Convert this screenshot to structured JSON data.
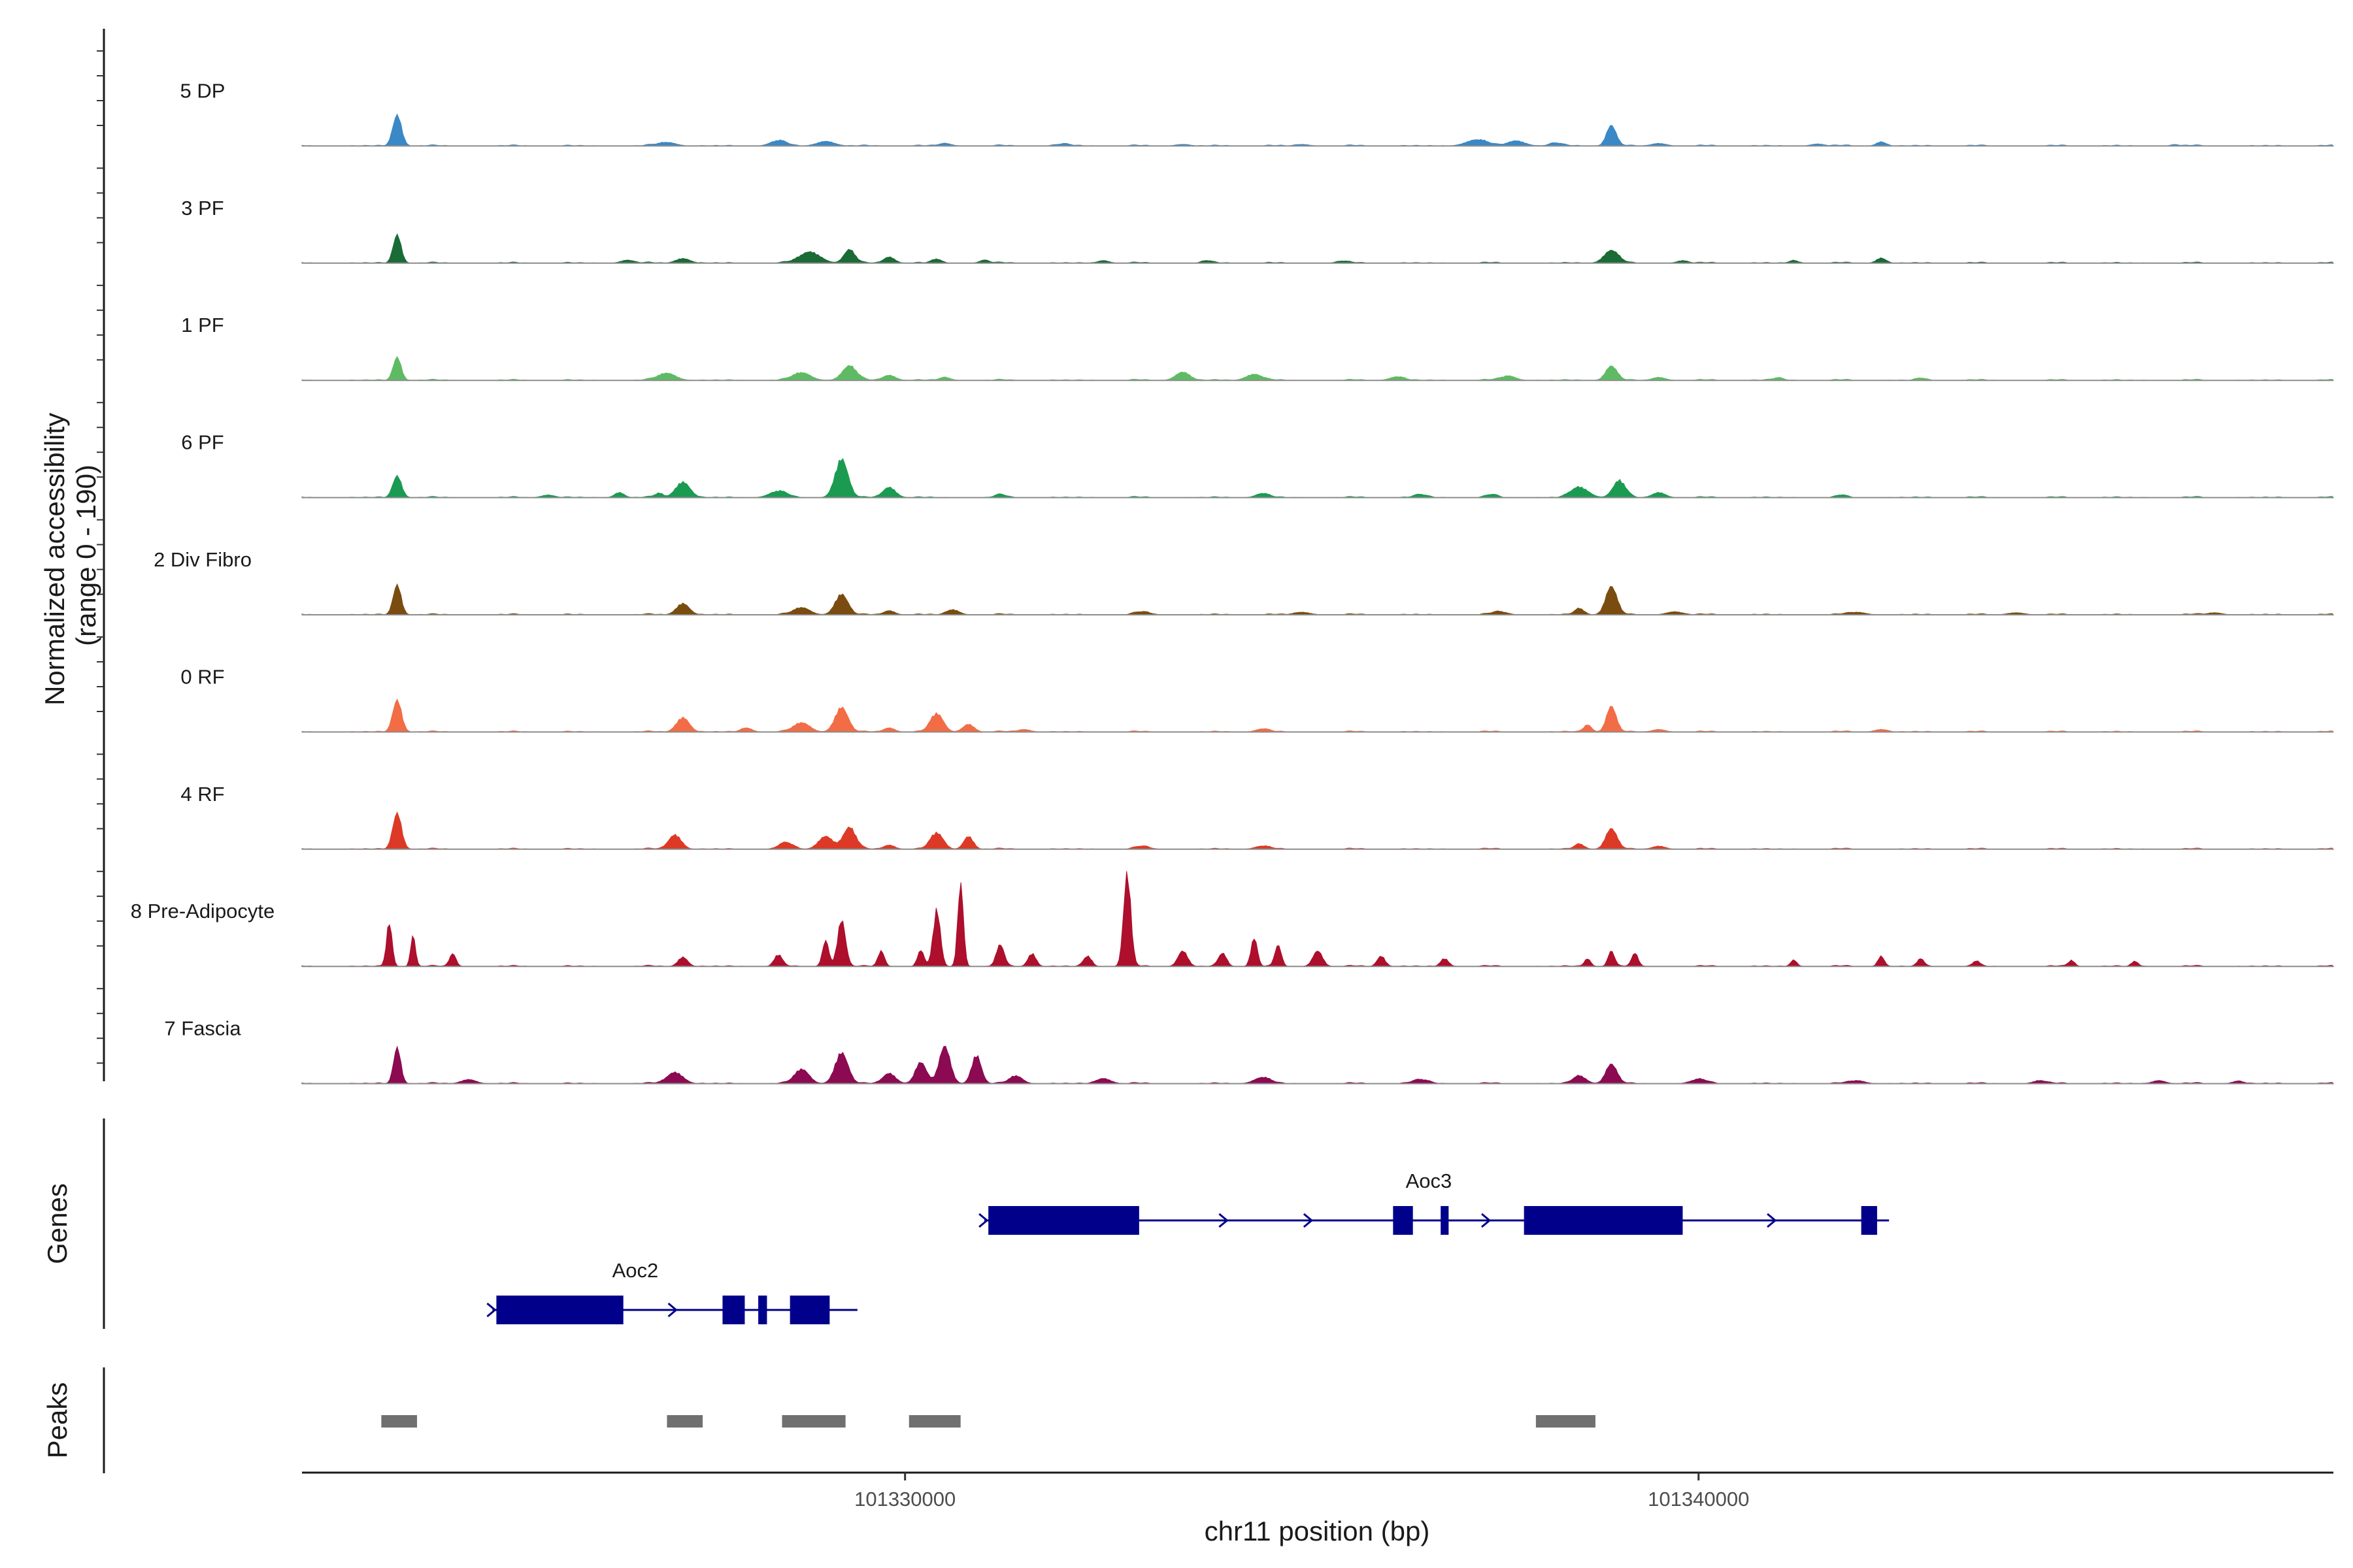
{
  "chart_data": {
    "type": "area",
    "chromosome": "chr11",
    "xlabel": "chr11 position (bp)",
    "ylabel_line1": "Normalized accessibility",
    "ylabel_line2": "(range 0 - 190)",
    "y_range": [
      0,
      190
    ],
    "x_range": [
      101322400,
      101348000
    ],
    "x_ticks": [
      101330000,
      101340000
    ],
    "x_tick_labels": [
      "101330000",
      "101340000"
    ],
    "genes_label": "Genes",
    "peaks_label": "Peaks",
    "series": [
      {
        "name": "5 DP",
        "color": "#3a88c6",
        "peaks": [
          [
            101323600,
            60,
            55
          ],
          [
            101327000,
            7,
            110
          ],
          [
            101328400,
            10,
            100
          ],
          [
            101329000,
            9,
            110
          ],
          [
            101330500,
            5,
            80
          ],
          [
            101332000,
            4,
            90
          ],
          [
            101333500,
            3,
            90
          ],
          [
            101335000,
            3,
            90
          ],
          [
            101337200,
            12,
            130
          ],
          [
            101337700,
            10,
            110
          ],
          [
            101338200,
            6,
            80
          ],
          [
            101338900,
            40,
            60
          ],
          [
            101339500,
            5,
            90
          ],
          [
            101341500,
            4,
            80
          ],
          [
            101342300,
            8,
            60
          ],
          [
            101346000,
            3,
            50
          ]
        ]
      },
      {
        "name": "3 PF",
        "color": "#1a6b36",
        "peaks": [
          [
            101323600,
            55,
            50
          ],
          [
            101326500,
            6,
            80
          ],
          [
            101327200,
            9,
            90
          ],
          [
            101328800,
            22,
            130
          ],
          [
            101329300,
            26,
            70
          ],
          [
            101329800,
            12,
            70
          ],
          [
            101330400,
            8,
            60
          ],
          [
            101331000,
            6,
            60
          ],
          [
            101332500,
            5,
            70
          ],
          [
            101333800,
            5,
            60
          ],
          [
            101335500,
            4,
            70
          ],
          [
            101338900,
            25,
            90
          ],
          [
            101339800,
            5,
            70
          ],
          [
            101341200,
            5,
            60
          ],
          [
            101342300,
            10,
            60
          ]
        ]
      },
      {
        "name": "1 PF",
        "color": "#5fbb63",
        "peaks": [
          [
            101323600,
            45,
            50
          ],
          [
            101327000,
            14,
            110
          ],
          [
            101328700,
            15,
            110
          ],
          [
            101329300,
            28,
            90
          ],
          [
            101329800,
            10,
            80
          ],
          [
            101330500,
            6,
            70
          ],
          [
            101333500,
            16,
            90
          ],
          [
            101334400,
            12,
            100
          ],
          [
            101336200,
            7,
            90
          ],
          [
            101337600,
            9,
            90
          ],
          [
            101338900,
            28,
            70
          ],
          [
            101339500,
            6,
            80
          ],
          [
            101341000,
            5,
            70
          ],
          [
            101342800,
            4,
            60
          ]
        ]
      },
      {
        "name": "6 PF",
        "color": "#1b9b51",
        "peaks": [
          [
            101323600,
            42,
            55
          ],
          [
            101325500,
            5,
            80
          ],
          [
            101326400,
            10,
            60
          ],
          [
            101326900,
            8,
            50
          ],
          [
            101327200,
            30,
            90
          ],
          [
            101328400,
            12,
            110
          ],
          [
            101329200,
            75,
            80
          ],
          [
            101329800,
            20,
            80
          ],
          [
            101331200,
            5,
            70
          ],
          [
            101334500,
            8,
            80
          ],
          [
            101336500,
            6,
            80
          ],
          [
            101337400,
            5,
            70
          ],
          [
            101338500,
            20,
            110
          ],
          [
            101339000,
            32,
            80
          ],
          [
            101339500,
            10,
            80
          ],
          [
            101341800,
            4,
            60
          ]
        ]
      },
      {
        "name": "2 Div Fibro",
        "color": "#7b4c10",
        "peaks": [
          [
            101323600,
            58,
            50
          ],
          [
            101327200,
            22,
            80
          ],
          [
            101328700,
            14,
            100
          ],
          [
            101329200,
            40,
            80
          ],
          [
            101329800,
            8,
            70
          ],
          [
            101330600,
            10,
            80
          ],
          [
            101333000,
            5,
            100
          ],
          [
            101335000,
            5,
            100
          ],
          [
            101337500,
            6,
            90
          ],
          [
            101338500,
            12,
            60
          ],
          [
            101338900,
            55,
            70
          ],
          [
            101339700,
            6,
            100
          ],
          [
            101342000,
            5,
            100
          ],
          [
            101344000,
            4,
            100
          ],
          [
            101346500,
            4,
            90
          ]
        ]
      },
      {
        "name": "0 RF",
        "color": "#f26c45",
        "peaks": [
          [
            101323600,
            62,
            55
          ],
          [
            101327200,
            28,
            80
          ],
          [
            101328000,
            8,
            70
          ],
          [
            101328700,
            18,
            100
          ],
          [
            101329200,
            48,
            80
          ],
          [
            101329800,
            8,
            70
          ],
          [
            101330400,
            36,
            80
          ],
          [
            101330800,
            15,
            70
          ],
          [
            101331500,
            5,
            80
          ],
          [
            101334500,
            6,
            80
          ],
          [
            101338600,
            14,
            50
          ],
          [
            101338900,
            50,
            60
          ],
          [
            101339500,
            5,
            80
          ],
          [
            101342300,
            5,
            80
          ]
        ]
      },
      {
        "name": "4 RF",
        "color": "#dc3a26",
        "peaks": [
          [
            101323600,
            70,
            55
          ],
          [
            101327100,
            28,
            80
          ],
          [
            101328500,
            12,
            90
          ],
          [
            101329000,
            25,
            90
          ],
          [
            101329300,
            42,
            80
          ],
          [
            101329800,
            8,
            70
          ],
          [
            101330400,
            32,
            80
          ],
          [
            101330800,
            25,
            60
          ],
          [
            101333000,
            5,
            90
          ],
          [
            101334500,
            6,
            90
          ],
          [
            101338500,
            10,
            60
          ],
          [
            101338900,
            40,
            70
          ],
          [
            101339500,
            6,
            80
          ]
        ]
      },
      {
        "name": "8 Pre-Adipocyte",
        "color": "#ad0f2c",
        "peaks": [
          [
            101323500,
            85,
            35
          ],
          [
            101323800,
            60,
            30
          ],
          [
            101324300,
            25,
            40
          ],
          [
            101327200,
            18,
            60
          ],
          [
            101328400,
            22,
            50
          ],
          [
            101329000,
            50,
            40
          ],
          [
            101329200,
            90,
            50
          ],
          [
            101329700,
            30,
            40
          ],
          [
            101330200,
            30,
            40
          ],
          [
            101330400,
            110,
            45
          ],
          [
            101330700,
            160,
            35
          ],
          [
            101331200,
            40,
            50
          ],
          [
            101331600,
            25,
            50
          ],
          [
            101332300,
            20,
            50
          ],
          [
            101332800,
            180,
            45
          ],
          [
            101333500,
            30,
            60
          ],
          [
            101334000,
            25,
            50
          ],
          [
            101334400,
            55,
            40
          ],
          [
            101334700,
            40,
            40
          ],
          [
            101335200,
            30,
            60
          ],
          [
            101336000,
            20,
            50
          ],
          [
            101336800,
            15,
            50
          ],
          [
            101338600,
            15,
            40
          ],
          [
            101338900,
            30,
            40
          ],
          [
            101339200,
            25,
            40
          ],
          [
            101341200,
            12,
            40
          ],
          [
            101342300,
            20,
            40
          ],
          [
            101342800,
            15,
            40
          ],
          [
            101343500,
            10,
            40
          ],
          [
            101344700,
            12,
            40
          ],
          [
            101345500,
            10,
            40
          ]
        ]
      },
      {
        "name": "7 Fascia",
        "color": "#8c0a52",
        "peaks": [
          [
            101323600,
            70,
            45
          ],
          [
            101324500,
            8,
            90
          ],
          [
            101327100,
            22,
            100
          ],
          [
            101328700,
            28,
            90
          ],
          [
            101329200,
            60,
            80
          ],
          [
            101329800,
            20,
            80
          ],
          [
            101330200,
            40,
            70
          ],
          [
            101330500,
            72,
            70
          ],
          [
            101330900,
            55,
            60
          ],
          [
            101331400,
            15,
            80
          ],
          [
            101332500,
            10,
            90
          ],
          [
            101334500,
            12,
            100
          ],
          [
            101336500,
            8,
            100
          ],
          [
            101338500,
            15,
            80
          ],
          [
            101338900,
            38,
            70
          ],
          [
            101340000,
            8,
            100
          ],
          [
            101342000,
            6,
            90
          ],
          [
            101344300,
            6,
            80
          ],
          [
            101345800,
            6,
            80
          ],
          [
            101346800,
            5,
            70
          ]
        ]
      }
    ],
    "genes": [
      {
        "name": "Aoc2",
        "strand": "+",
        "start": 101324800,
        "end": 101329400,
        "exons": [
          [
            101324850,
            101326450
          ],
          [
            101327700,
            101327980
          ],
          [
            101328150,
            101328260
          ],
          [
            101328550,
            101329050
          ]
        ]
      },
      {
        "name": "Aoc3",
        "strand": "+",
        "start": 101331000,
        "end": 101342400,
        "exons": [
          [
            101331050,
            101332950
          ],
          [
            101336150,
            101336400
          ],
          [
            101336750,
            101336850
          ],
          [
            101337800,
            101339800
          ],
          [
            101342050,
            101342250
          ]
        ]
      }
    ],
    "peaks_ranges": [
      [
        101323400,
        101323850
      ],
      [
        101327000,
        101327450
      ],
      [
        101328450,
        101329250
      ],
      [
        101330050,
        101330700
      ],
      [
        101337950,
        101338700
      ]
    ]
  }
}
